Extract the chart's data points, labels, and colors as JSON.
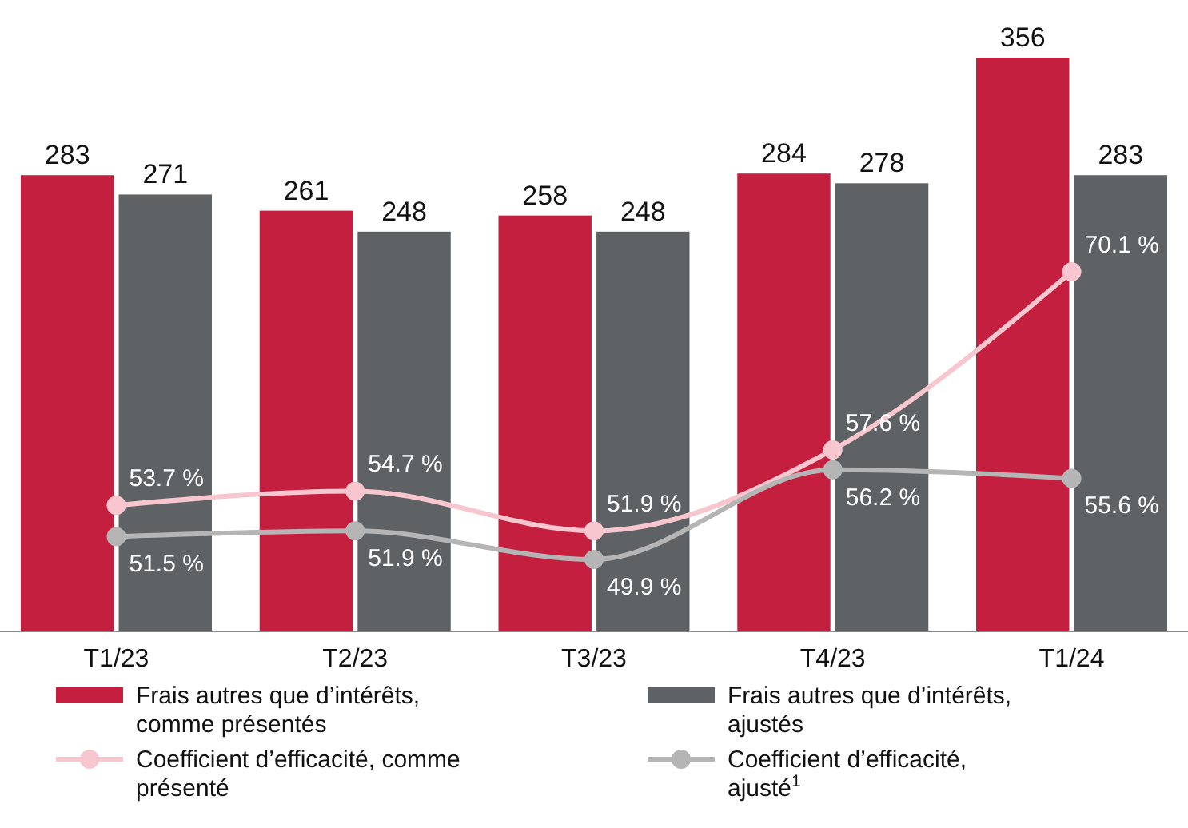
{
  "chart_data": {
    "type": "bar",
    "categories": [
      "T1/23",
      "T2/23",
      "T3/23",
      "T4/23",
      "T1/24"
    ],
    "series": [
      {
        "name": "Frais autres que d’intérêts, comme présentés",
        "color": "#c41f3e",
        "values": [
          283,
          261,
          258,
          284,
          356
        ]
      },
      {
        "name": "Frais autres que d’intérêts, ajustés",
        "color": "#5f6265",
        "values": [
          271,
          248,
          248,
          278,
          283
        ]
      },
      {
        "name": "Coefficient d’efficacité, comme présenté",
        "color": "#f7c6cf",
        "type": "line",
        "axis": "y2",
        "marker": "circle",
        "values": [
          53.7,
          54.7,
          51.9,
          57.6,
          70.1
        ],
        "value_labels": [
          "53.7 %",
          "54.7 %",
          "51.9 %",
          "57.6 %",
          "70.1 %"
        ]
      },
      {
        "name": "Coefficient d’efficacité, ajusté$^{1}$",
        "color": "#b5b5b5",
        "type": "line",
        "axis": "y2",
        "marker": "circle",
        "values": [
          51.5,
          51.9,
          49.9,
          56.2,
          55.6
        ],
        "value_labels": [
          "51.5 %",
          "51.9 %",
          "49.9 %",
          "56.2 %",
          "55.6 %"
        ]
      }
    ],
    "tick_labels": "x",
    "data_labels": true,
    "legend": "bottom"
  }
}
